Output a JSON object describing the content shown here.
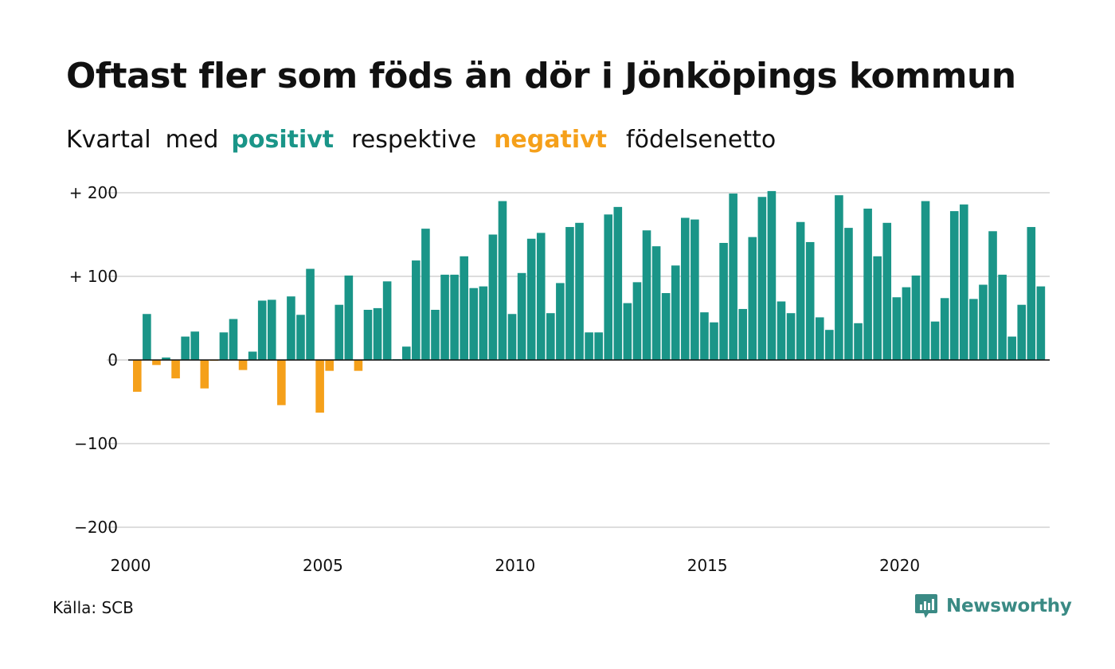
{
  "title": "Oftast fler som föds än dör i Jönköpings kommun",
  "subtitle": {
    "part1": "Kvartal",
    "part2": "med",
    "positive": "positivt",
    "part3": "respektive",
    "negative": "negativt",
    "part4": "födelsenetto"
  },
  "source": "Källa: SCB",
  "brand": "Newsworthy",
  "brand_icon": "newsworthy-logo-icon",
  "colors": {
    "positive": "#1a9588",
    "negative": "#f5a01a",
    "grid": "#dddddd",
    "baseline": "#111111",
    "brand": "#3a8a84"
  },
  "chart_data": {
    "type": "bar",
    "title": "Oftast fler som föds än dör i Jönköpings kommun",
    "xlabel": "",
    "ylabel": "",
    "ylim": [
      -200,
      200
    ],
    "yticks": [
      {
        "value": 200,
        "label": "+ 200"
      },
      {
        "value": 100,
        "label": "+ 100"
      },
      {
        "value": 0,
        "label": "0"
      },
      {
        "value": -100,
        "label": "−100"
      },
      {
        "value": -200,
        "label": "−200"
      }
    ],
    "xticks": [
      "2000",
      "2005",
      "2010",
      "2015",
      "2020"
    ],
    "grid": true,
    "start_year": 2000,
    "categories": [
      "2000 Q1",
      "2000 Q2",
      "2000 Q3",
      "2000 Q4",
      "2001 Q1",
      "2001 Q2",
      "2001 Q3",
      "2001 Q4",
      "2002 Q1",
      "2002 Q2",
      "2002 Q3",
      "2002 Q4",
      "2003 Q1",
      "2003 Q2",
      "2003 Q3",
      "2003 Q4",
      "2004 Q1",
      "2004 Q2",
      "2004 Q3",
      "2004 Q4",
      "2005 Q1",
      "2005 Q2",
      "2005 Q3",
      "2005 Q4",
      "2006 Q1",
      "2006 Q2",
      "2006 Q3",
      "2006 Q4",
      "2007 Q1",
      "2007 Q2",
      "2007 Q3",
      "2007 Q4",
      "2008 Q1",
      "2008 Q2",
      "2008 Q3",
      "2008 Q4",
      "2009 Q1",
      "2009 Q2",
      "2009 Q3",
      "2009 Q4",
      "2010 Q1",
      "2010 Q2",
      "2010 Q3",
      "2010 Q4",
      "2011 Q1",
      "2011 Q2",
      "2011 Q3",
      "2011 Q4",
      "2012 Q1",
      "2012 Q2",
      "2012 Q3",
      "2012 Q4",
      "2013 Q1",
      "2013 Q2",
      "2013 Q3",
      "2013 Q4",
      "2014 Q1",
      "2014 Q2",
      "2014 Q3",
      "2014 Q4",
      "2015 Q1",
      "2015 Q2",
      "2015 Q3",
      "2015 Q4",
      "2016 Q1",
      "2016 Q2",
      "2016 Q3",
      "2016 Q4",
      "2017 Q1",
      "2017 Q2",
      "2017 Q3",
      "2017 Q4",
      "2018 Q1",
      "2018 Q2",
      "2018 Q3",
      "2018 Q4",
      "2019 Q1",
      "2019 Q2",
      "2019 Q3",
      "2019 Q4",
      "2020 Q1",
      "2020 Q2",
      "2020 Q3",
      "2020 Q4",
      "2021 Q1",
      "2021 Q2",
      "2021 Q3",
      "2021 Q4",
      "2022 Q1",
      "2022 Q2",
      "2022 Q3",
      "2022 Q4",
      "2023 Q1",
      "2023 Q2",
      "2023 Q3",
      "2023 Q4"
    ],
    "values": [
      -38,
      55,
      -6,
      3,
      -22,
      28,
      34,
      -34,
      -1,
      33,
      49,
      -12,
      10,
      71,
      72,
      -54,
      76,
      54,
      109,
      -63,
      -13,
      66,
      101,
      -13,
      60,
      62,
      94,
      1,
      16,
      119,
      157,
      60,
      102,
      102,
      124,
      86,
      88,
      150,
      190,
      55,
      104,
      145,
      152,
      56,
      92,
      159,
      164,
      33,
      33,
      174,
      183,
      68,
      93,
      155,
      136,
      80,
      113,
      170,
      168,
      57,
      45,
      140,
      199,
      61,
      147,
      195,
      202,
      70,
      56,
      165,
      141,
      51,
      36,
      197,
      158,
      44,
      181,
      124,
      164,
      75,
      87,
      101,
      190,
      46,
      74,
      178,
      186,
      73,
      90,
      154,
      102,
      28,
      66,
      159,
      88,
      0
    ]
  }
}
